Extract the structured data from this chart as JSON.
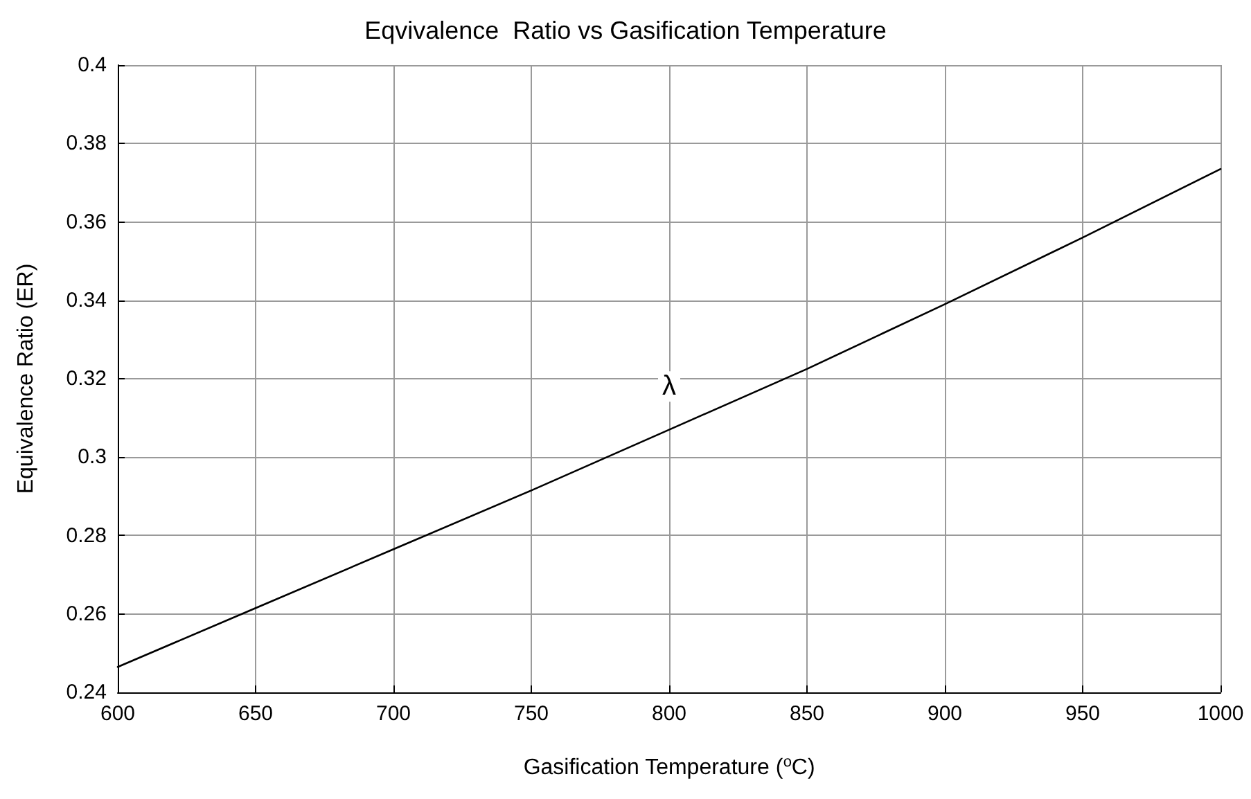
{
  "chart_data": {
    "type": "line",
    "title": "Eqvivalence  Ratio vs Gasification Temperature",
    "xlabel": "Gasification Temperature ($^{o}$C)",
    "ylabel": "Equivalence Ratio (ER)",
    "x": [
      600,
      650,
      700,
      750,
      800,
      850,
      900,
      950,
      1000
    ],
    "series": [
      {
        "color": "#000000",
        "values": [
          0.2465,
          0.2615,
          0.2765,
          0.2915,
          0.307,
          0.3225,
          0.339,
          0.356,
          0.3735
        ]
      }
    ],
    "annotations": [
      {
        "text": "λ",
        "x": 800,
        "y": 0.318
      }
    ],
    "xlim": [
      600,
      1000
    ],
    "xticks": [
      600,
      650,
      700,
      750,
      800,
      850,
      900,
      950,
      1000
    ],
    "ylim": [
      0.24,
      0.4
    ],
    "yticks": [
      0.24,
      0.26,
      0.28,
      0.3,
      0.32,
      0.34,
      0.36,
      0.38,
      0.4
    ],
    "grid": true,
    "marker": "none",
    "line_style": "solid"
  }
}
